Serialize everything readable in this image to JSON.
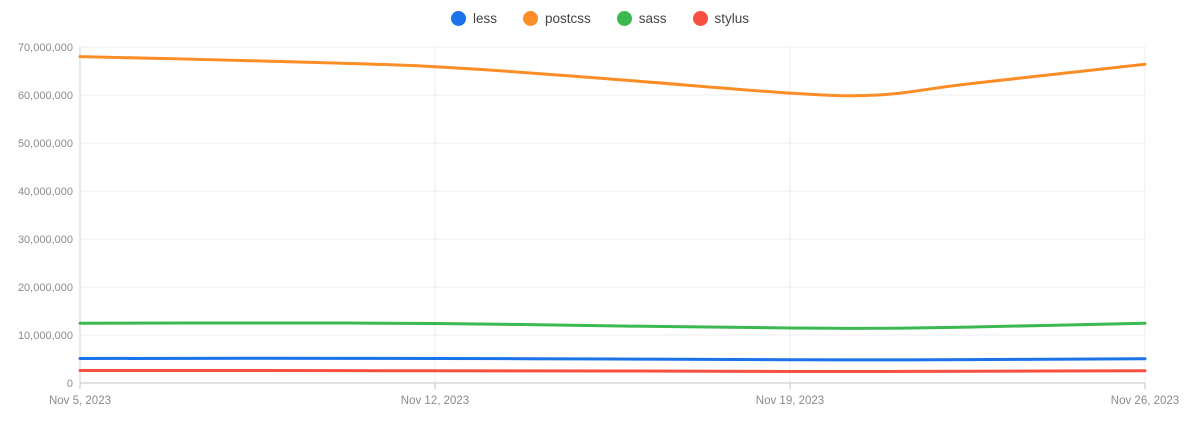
{
  "chart_data": {
    "type": "line",
    "title": "",
    "xlabel": "",
    "ylabel": "",
    "x_unit": "days since Nov 5, 2023",
    "xlim_days": [
      0,
      21
    ],
    "ylim": [
      0,
      70000000
    ],
    "grid": true,
    "legend_position": "top-center",
    "x_ticks": [
      {
        "day": 0,
        "label": "Nov 5, 2023"
      },
      {
        "day": 7,
        "label": "Nov 12, 2023"
      },
      {
        "day": 14,
        "label": "Nov 19, 2023"
      },
      {
        "day": 21,
        "label": "Nov 26, 2023"
      }
    ],
    "y_ticks": [
      {
        "value": 0,
        "label": "0"
      },
      {
        "value": 10000000,
        "label": "10,000,000"
      },
      {
        "value": 20000000,
        "label": "20,000,000"
      },
      {
        "value": 30000000,
        "label": "30,000,000"
      },
      {
        "value": 40000000,
        "label": "40,000,000"
      },
      {
        "value": 50000000,
        "label": "50,000,000"
      },
      {
        "value": 60000000,
        "label": "60,000,000"
      },
      {
        "value": 70000000,
        "label": "70,000,000"
      }
    ],
    "x_days": [
      0,
      3.5,
      7,
      10.5,
      14,
      15.75,
      17.5,
      21
    ],
    "series": [
      {
        "name": "less",
        "color": "#1a73e8",
        "values": [
          5100000,
          5150000,
          5100000,
          5000000,
          4850000,
          4820000,
          4880000,
          5050000
        ]
      },
      {
        "name": "postcss",
        "color": "#fc8d27",
        "values": [
          68000000,
          67100000,
          65900000,
          63300000,
          60400000,
          60000000,
          62300000,
          66400000
        ]
      },
      {
        "name": "sass",
        "color": "#3bb951",
        "values": [
          12450000,
          12500000,
          12400000,
          11900000,
          11450000,
          11400000,
          11650000,
          12450000
        ]
      },
      {
        "name": "stylus",
        "color": "#f94f41",
        "values": [
          2600000,
          2600000,
          2550000,
          2500000,
          2400000,
          2400000,
          2450000,
          2550000
        ]
      }
    ],
    "colors": {
      "grid_line": "#ececec",
      "zero_line": "#c2c2c2",
      "axis_line": "#d2d2d2",
      "tick_mark": "#c6c6c6"
    }
  }
}
